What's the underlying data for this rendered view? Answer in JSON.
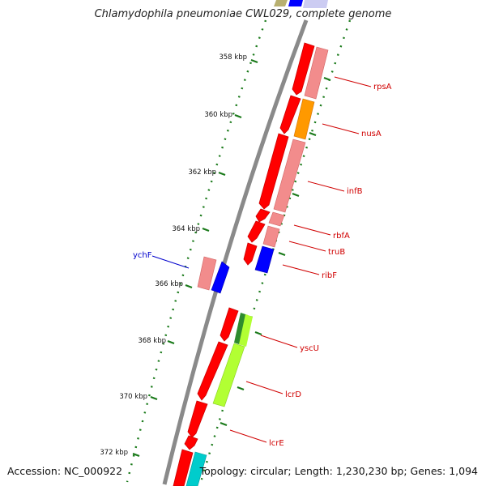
{
  "title": "Chlamydophila pneumoniae CWL029, complete genome",
  "accession": "Accession: NC_000922",
  "summary": "Topology: circular; Length: 1,230,230 bp; Genes: 1,094",
  "ticks": [
    "358 kbp",
    "360 kbp",
    "362 kbp",
    "364 kbp",
    "366 kbp",
    "368 kbp",
    "370 kbp",
    "372 kbp"
  ],
  "genes": [
    {
      "name": "rpsA",
      "color": "#d00000"
    },
    {
      "name": "nusA",
      "color": "#d00000"
    },
    {
      "name": "infB",
      "color": "#d00000"
    },
    {
      "name": "rbfA",
      "color": "#d00000"
    },
    {
      "name": "truB",
      "color": "#d00000"
    },
    {
      "name": "ribF",
      "color": "#d00000"
    },
    {
      "name": "ychF",
      "color": "#0000cc"
    },
    {
      "name": "yscU",
      "color": "#d00000"
    },
    {
      "name": "lcrD",
      "color": "#d00000"
    },
    {
      "name": "lcrE",
      "color": "#d00000"
    }
  ],
  "colors": {
    "cds": "#ff0000",
    "gene_pink": "#f28c8c",
    "orange": "#ff9900",
    "blue": "#0000ff",
    "green": "#2e8b2e",
    "lime": "#b2ff33",
    "cyan": "#00cccc",
    "tick": "#1a7a1a",
    "backbone": "#888888"
  }
}
